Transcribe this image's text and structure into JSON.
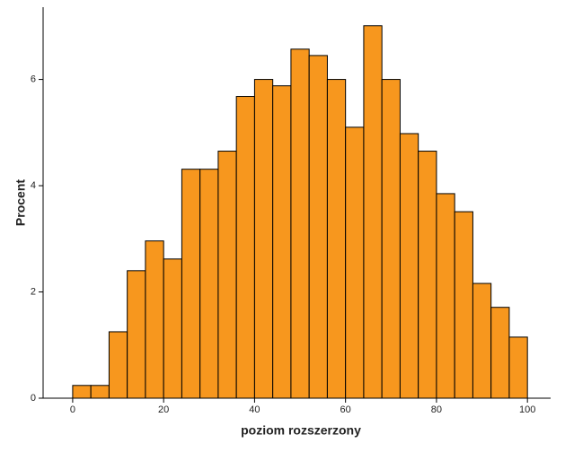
{
  "chart_data": {
    "type": "histogram",
    "x_label": "poziom rozszerzony",
    "y_label": "Procent",
    "bins": [
      0,
      4,
      8,
      12,
      16,
      20,
      24,
      28,
      32,
      36,
      40,
      44,
      48,
      52,
      56,
      60,
      64,
      68,
      72,
      76,
      80,
      84,
      88,
      92,
      96,
      100
    ],
    "values": [
      0.24,
      0.24,
      1.25,
      2.4,
      2.96,
      2.62,
      4.31,
      4.31,
      4.65,
      5.68,
      6.0,
      5.88,
      6.57,
      6.45,
      6.0,
      5.1,
      7.01,
      6.0,
      4.98,
      4.65,
      3.85,
      3.51,
      2.16,
      1.71,
      1.15
    ],
    "color": "#f7971e",
    "xlim": [
      -6.5,
      105.1
    ],
    "xticks": [
      0,
      20,
      40,
      60,
      80,
      100
    ],
    "ylim": [
      0,
      7.36
    ],
    "yticks": [
      0,
      2,
      4,
      6
    ]
  }
}
